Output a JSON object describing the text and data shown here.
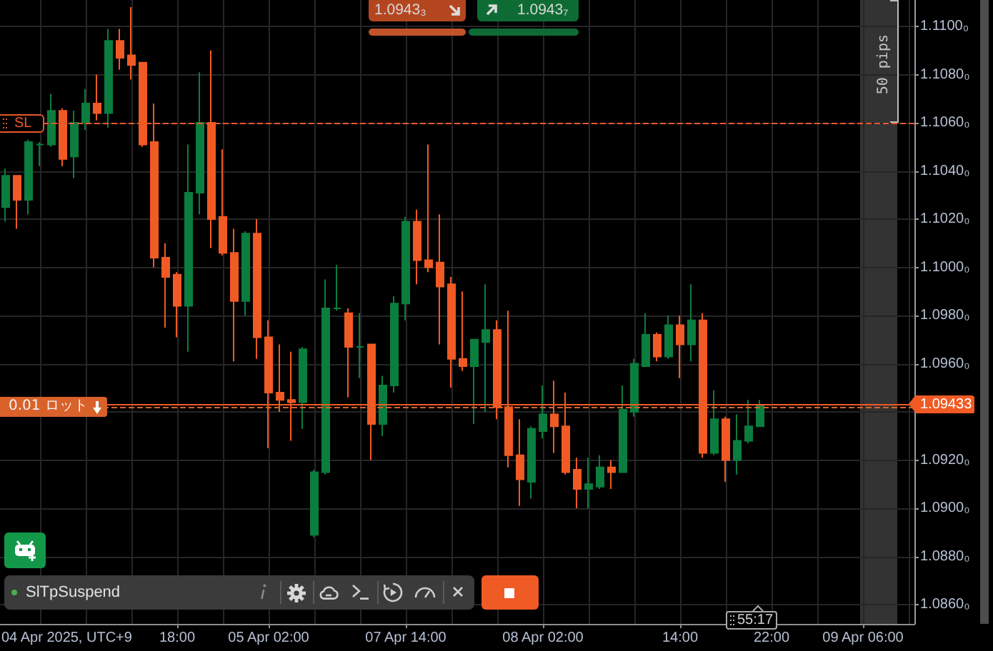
{
  "chart_data": {
    "type": "candlestick",
    "xlabel": "04 Apr 2025, UTC+9",
    "categories": [
      null,
      null,
      null,
      null,
      null,
      null,
      null,
      null,
      null,
      null,
      null,
      null,
      null,
      null,
      null,
      "18:00",
      null,
      null,
      null,
      null,
      null,
      null,
      null,
      "05 Apr 02:00",
      null,
      null,
      null,
      null,
      null,
      null,
      null,
      null,
      null,
      null,
      null,
      "07 Apr 14:00",
      null,
      null,
      null,
      null,
      null,
      null,
      null,
      null,
      null,
      null,
      null,
      "08 Apr 02:00",
      null,
      null,
      null,
      null,
      null,
      null,
      null,
      null,
      null,
      null,
      null,
      "14:00",
      null,
      null,
      null,
      null,
      null,
      null,
      null,
      "22:00",
      null,
      null,
      null,
      null,
      null,
      null,
      null,
      "09 Apr 06:00",
      null,
      null,
      null,
      null
    ],
    "ohlc": [
      [
        1.1025,
        1.1041,
        1.1019,
        1.1038
      ],
      [
        1.1038,
        1.1038,
        1.1016,
        1.1028
      ],
      [
        1.1028,
        1.1053,
        1.1022,
        1.1052
      ],
      [
        1.1051,
        1.1052,
        1.1042,
        1.1051
      ],
      [
        1.1051,
        1.1072,
        1.105,
        1.1065
      ],
      [
        1.1065,
        1.1066,
        1.1042,
        1.1045
      ],
      [
        1.1046,
        1.1065,
        1.1037,
        1.106
      ],
      [
        1.106,
        1.1074,
        1.1057,
        1.1068
      ],
      [
        1.1068,
        1.108,
        1.1061,
        1.1064
      ],
      [
        1.1064,
        1.1099,
        1.1058,
        1.1094
      ],
      [
        1.1094,
        1.1099,
        1.1082,
        1.1087
      ],
      [
        1.1088,
        1.1108,
        1.1078,
        1.1084
      ],
      [
        1.1085,
        1.1085,
        1.105,
        1.1051
      ],
      [
        1.1052,
        1.1068,
        1.1,
        1.1004
      ],
      [
        1.1004,
        1.101,
        1.0975,
        1.0996
      ],
      [
        1.0997,
        1.0998,
        1.0971,
        1.0984
      ],
      [
        1.0984,
        1.1051,
        1.0965,
        1.1031
      ],
      [
        1.1031,
        1.1081,
        1.1022,
        1.106
      ],
      [
        1.106,
        1.109,
        1.1008,
        1.102
      ],
      [
        1.1021,
        1.1049,
        1.1005,
        1.1006
      ],
      [
        1.1006,
        1.1016,
        1.0961,
        1.0986
      ],
      [
        1.0986,
        1.1015,
        1.098,
        1.1014
      ],
      [
        1.1014,
        1.102,
        1.0962,
        1.0971
      ],
      [
        1.0971,
        1.0978,
        1.0925,
        1.0948
      ],
      [
        1.0948,
        1.0968,
        1.094,
        1.0945
      ],
      [
        1.0945,
        1.0965,
        1.0928,
        1.0944
      ],
      [
        1.0944,
        1.0967,
        1.0933,
        1.0966
      ],
      [
        1.0889,
        1.0916,
        1.0888,
        1.0915
      ],
      [
        1.0915,
        1.0995,
        1.0914,
        1.0983
      ],
      [
        1.0983,
        1.1001,
        1.0982,
        1.0983
      ],
      [
        1.0981,
        1.0983,
        1.0946,
        1.0967
      ],
      [
        1.0967,
        1.0981,
        1.0954,
        1.0967
      ],
      [
        1.0968,
        1.0968,
        1.092,
        1.0935
      ],
      [
        1.0935,
        1.0955,
        1.093,
        1.0951
      ],
      [
        1.0951,
        1.0988,
        1.0948,
        1.0985
      ],
      [
        1.0985,
        1.1021,
        1.0978,
        1.1019
      ],
      [
        1.1019,
        1.1024,
        1.0993,
        1.1003
      ],
      [
        1.1003,
        1.1051,
        1.0998,
        1.1
      ],
      [
        1.1002,
        1.1022,
        1.0968,
        1.0992
      ],
      [
        1.0993,
        1.0996,
        1.095,
        1.0962
      ],
      [
        1.0962,
        1.099,
        1.0957,
        1.0959
      ],
      [
        1.0959,
        1.097,
        1.0935,
        1.097
      ],
      [
        1.0969,
        1.0993,
        1.094,
        1.0974
      ],
      [
        1.0974,
        1.0978,
        1.0937,
        1.0942
      ],
      [
        1.0942,
        1.0982,
        1.0917,
        1.0922
      ],
      [
        1.0922,
        1.0937,
        1.0901,
        1.0912
      ],
      [
        1.0911,
        1.0934,
        1.0904,
        1.0933
      ],
      [
        1.0932,
        1.0951,
        1.0929,
        1.0939
      ],
      [
        1.0939,
        1.0953,
        1.0923,
        1.0934
      ],
      [
        1.0934,
        1.0948,
        1.0914,
        1.0915
      ],
      [
        1.0916,
        1.0921,
        1.09,
        1.0908
      ],
      [
        1.0908,
        1.0921,
        1.09,
        1.091
      ],
      [
        1.0909,
        1.0922,
        1.0908,
        1.0917
      ],
      [
        1.0917,
        1.092,
        1.0908,
        1.0915
      ],
      [
        1.0915,
        1.0951,
        1.0915,
        1.0941
      ],
      [
        1.094,
        1.0962,
        1.0938,
        1.096
      ],
      [
        1.0959,
        1.0981,
        1.0959,
        1.0972
      ],
      [
        1.0972,
        1.0973,
        1.0961,
        1.0963
      ],
      [
        1.0963,
        1.098,
        1.0962,
        1.0976
      ],
      [
        1.0976,
        1.098,
        1.0954,
        1.0968
      ],
      [
        1.0968,
        1.0993,
        1.0961,
        1.0978
      ],
      [
        1.0978,
        1.0981,
        1.0921,
        1.0923
      ],
      [
        1.0923,
        1.0949,
        1.0922,
        1.0937
      ],
      [
        1.0937,
        1.0938,
        1.0911,
        1.092
      ],
      [
        1.092,
        1.0939,
        1.0914,
        1.0928
      ],
      [
        1.0928,
        1.0945,
        1.0927,
        1.0934
      ],
      [
        1.0934,
        1.0945,
        1.0934,
        1.0943
      ],
      null,
      null,
      null,
      null,
      null,
      null,
      null,
      null,
      null,
      null,
      null,
      null,
      null
    ],
    "colors": [
      "#0b7d3e",
      "#f15a24",
      "#0b7d3e",
      "#0b7d3e",
      "#0b7d3e",
      "#f15a24",
      "#0b7d3e",
      "#0b7d3e",
      "#f15a24",
      "#0b7d3e",
      "#f15a24",
      "#f15a24",
      "#f15a24",
      "#f15a24",
      "#f15a24",
      "#f15a24",
      "#0b7d3e",
      "#0b7d3e",
      "#f15a24",
      "#f15a24",
      "#f15a24",
      "#0b7d3e",
      "#f15a24",
      "#f15a24",
      "#f15a24",
      "#f15a24",
      "#0b7d3e",
      "#0b7d3e",
      "#0b7d3e",
      "#0b7d3e",
      "#f15a24",
      "#0b7d3e",
      "#f15a24",
      "#0b7d3e",
      "#0b7d3e",
      "#0b7d3e",
      "#f15a24",
      "#f15a24",
      "#f15a24",
      "#f15a24",
      "#f15a24",
      "#0b7d3e",
      "#0b7d3e",
      "#f15a24",
      "#f15a24",
      "#f15a24",
      "#0b7d3e",
      "#0b7d3e",
      "#f15a24",
      "#f15a24",
      "#f15a24",
      "#0b7d3e",
      "#0b7d3e",
      "#f15a24",
      "#0b7d3e",
      "#0b7d3e",
      "#0b7d3e",
      "#f15a24",
      "#0b7d3e",
      "#f15a24",
      "#0b7d3e",
      "#f15a24",
      "#0b7d3e",
      "#f15a24",
      "#0b7d3e",
      "#0b7d3e",
      "#0b7d3e",
      null,
      null,
      null,
      null,
      null,
      null,
      null,
      null,
      null,
      null,
      null,
      null,
      null
    ],
    "ylim": [
      1.0852,
      1.1111
    ],
    "yticks": [
      {
        "value": 1.086,
        "label": "1.0860₀"
      },
      {
        "value": 1.088,
        "label": "1.0880₀"
      },
      {
        "value": 1.09,
        "label": "1.0900₀"
      },
      {
        "value": 1.092,
        "label": "1.0920₀"
      },
      {
        "value": 1.094,
        "label": null
      },
      {
        "value": 1.096,
        "label": "1.0960₀"
      },
      {
        "value": 1.098,
        "label": "1.0980₀"
      },
      {
        "value": 1.1,
        "label": "1.1000₀"
      },
      {
        "value": 1.102,
        "label": "1.1020₀"
      },
      {
        "value": 1.104,
        "label": "1.1040₀"
      },
      {
        "value": 1.106,
        "label": "1.1060₀"
      },
      {
        "value": 1.108,
        "label": "1.1080₀"
      },
      {
        "value": 1.11,
        "label": "1.1100₀"
      }
    ],
    "grid": true,
    "ref_lines": [
      {
        "axis": "y",
        "value": 1.106,
        "label": "SL",
        "color": "#e8582a",
        "line_style": "dashed"
      },
      {
        "axis": "y",
        "value": 1.09433,
        "label": "1.09433",
        "color": "#f15a24",
        "line_style": "solid"
      },
      {
        "axis": "y",
        "value": 1.0942,
        "label": "0.01 ロット",
        "color": "#d9622b",
        "line_style": "dashed"
      }
    ],
    "annotations": [
      "1.0943₃",
      "1.0943₇",
      "50 pips",
      "SlTpSuspend",
      "55:17"
    ]
  }
}
